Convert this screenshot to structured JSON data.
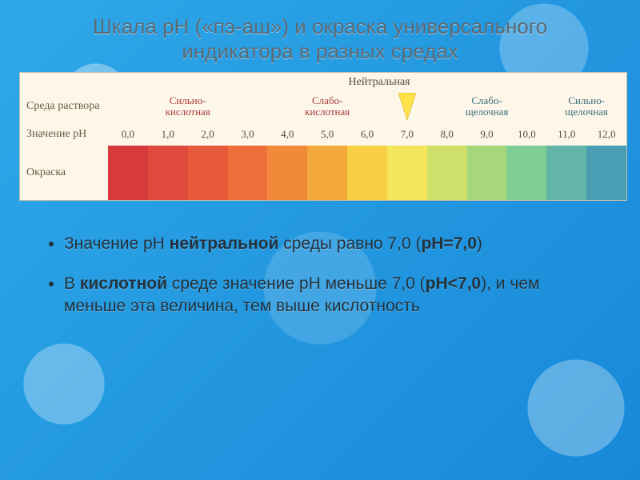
{
  "title": "Шкала рН («пэ-аш») и окраска универсального индикатора в разных средах",
  "neutral_label": "Нейтральная",
  "row_labels": {
    "environment": "Среда раствора",
    "value": "Значение pH",
    "color": "Окраска"
  },
  "env_groups": [
    {
      "label": "Сильно-\nкислотная",
      "span": 4,
      "color": "#a63a3a"
    },
    {
      "label": "Слабо-\nкислотная",
      "span": 3,
      "color": "#a63a3a"
    },
    {
      "label": "",
      "span": 1,
      "color": "#a63a3a",
      "is_neutral_marker": true
    },
    {
      "label": "Слабо-\nщелочная",
      "span": 3,
      "color": "#3a6a7a"
    },
    {
      "label": "Сильно-\nщелочная",
      "span": 2,
      "color": "#3a6a7a"
    }
  ],
  "neutral_marker_color": "#ffe24a",
  "ph_values": [
    "0,0",
    "1,0",
    "2,0",
    "3,0",
    "4,0",
    "5,0",
    "6,0",
    "7,0",
    "8,0",
    "9,0",
    "10,0",
    "11,0",
    "12,0"
  ],
  "ph_colors": [
    "#d63a3a",
    "#e04a3c",
    "#e85a3c",
    "#ef6f3a",
    "#f08a3a",
    "#f4a93c",
    "#f7cf45",
    "#f4e65a",
    "#cfe06a",
    "#a6d77a",
    "#7fcf94",
    "#63b5a8",
    "#4a9eb3"
  ],
  "panel_bg": "#fdf7ea",
  "bullets": [
    {
      "pre": "Значение рН ",
      "bold": "нейтральной",
      "post": " среды равно 7,0 (",
      "bold2": "pH=7,0",
      "post2": ")"
    },
    {
      "pre": "В ",
      "bold": "кислотной",
      "post": " среде значение рН меньше 7,0 (",
      "bold2": "рН<7,0",
      "post2": "), и чем меньше эта величина, тем выше кислотность"
    }
  ]
}
